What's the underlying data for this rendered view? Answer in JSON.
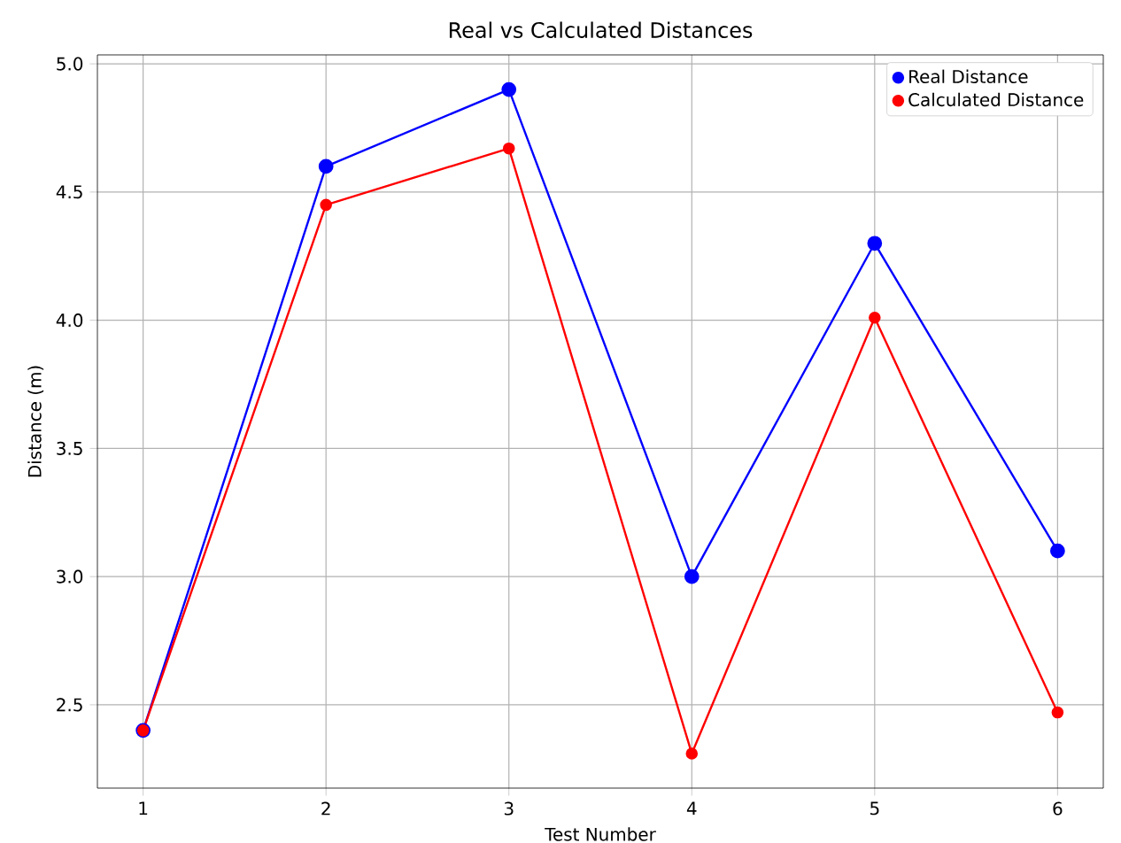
{
  "chart_data": {
    "type": "line",
    "title": "Real vs Calculated Distances",
    "xlabel": "Test Number",
    "ylabel": "Distance (m)",
    "x": [
      1,
      2,
      3,
      4,
      5,
      6
    ],
    "series": [
      {
        "name": "Real Distance",
        "color": "#0000ff",
        "values": [
          2.4,
          4.6,
          4.9,
          3.0,
          4.3,
          3.1
        ]
      },
      {
        "name": "Calculated Distance",
        "color": "#ff0000",
        "values": [
          2.4,
          4.45,
          4.67,
          2.31,
          4.01,
          2.47
        ]
      }
    ],
    "xlim": [
      0.75,
      6.25
    ],
    "ylim": [
      2.175,
      5.035
    ],
    "xticks": [
      1,
      2,
      3,
      4,
      5,
      6
    ],
    "yticks": [
      {
        "value": 2.5,
        "label": "2.5"
      },
      {
        "value": 3.0,
        "label": "3.0"
      },
      {
        "value": 3.5,
        "label": "3.5"
      },
      {
        "value": 4.0,
        "label": "4.0"
      },
      {
        "value": 4.5,
        "label": "4.5"
      },
      {
        "value": 5.0,
        "label": "5.0"
      }
    ],
    "grid": true,
    "legend": "top right",
    "marker": "circle",
    "line_style": "solid"
  }
}
